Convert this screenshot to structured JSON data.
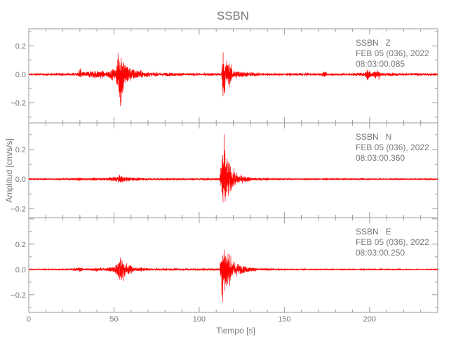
{
  "chart_data": [
    {
      "type": "line",
      "title": "SSBN",
      "xlabel": "Tiempo [s]",
      "ylabel": "Amplitud [cm/s/s]",
      "xlim": [
        0,
        240
      ],
      "xticks": [
        0,
        50,
        100,
        150,
        200
      ],
      "x_minor_step": 10,
      "grid": false,
      "color": "#ff0000",
      "panels": [
        {
          "station": "SSBN",
          "component": "Z",
          "label_line1": "SSBN   Z",
          "label_line2": "FEB 05 (036), 2022",
          "label_line3": "08:03:00.085",
          "ylim": [
            -0.34,
            0.32
          ],
          "yticks": [
            -0.2,
            0.0,
            0.2
          ],
          "ytick_labels": [
            "−0.2",
            "0.0",
            "0.2"
          ],
          "background_amplitude": 0.008,
          "envelope": [
            [
              0,
              0.008
            ],
            [
              20,
              0.01
            ],
            [
              29,
              0.012
            ],
            [
              30,
              0.07
            ],
            [
              31,
              0.02
            ],
            [
              38,
              0.03
            ],
            [
              42,
              0.035
            ],
            [
              45,
              0.02
            ],
            [
              51,
              0.05
            ],
            [
              54,
              0.3
            ],
            [
              56,
              0.12
            ],
            [
              60,
              0.05
            ],
            [
              66,
              0.03
            ],
            [
              72,
              0.015
            ],
            [
              100,
              0.01
            ],
            [
              113,
              0.012
            ],
            [
              114,
              0.2
            ],
            [
              116,
              0.13
            ],
            [
              120,
              0.04
            ],
            [
              126,
              0.02
            ],
            [
              140,
              0.01
            ],
            [
              172,
              0.01
            ],
            [
              173,
              0.025
            ],
            [
              175,
              0.01
            ],
            [
              197,
              0.012
            ],
            [
              199,
              0.06
            ],
            [
              201,
              0.02
            ],
            [
              205,
              0.04
            ],
            [
              207,
              0.012
            ],
            [
              240,
              0.009
            ]
          ]
        },
        {
          "station": "SSBN",
          "component": "N",
          "label_line1": "SSBN   N",
          "label_line2": "FEB 05 (036), 2022",
          "label_line3": "08:03:00.360",
          "ylim": [
            -0.26,
            0.38
          ],
          "yticks": [
            -0.2,
            0.0,
            0.2
          ],
          "ytick_labels": [
            "−0.2",
            "0.0",
            "0.2"
          ],
          "background_amplitude": 0.006,
          "envelope": [
            [
              0,
              0.006
            ],
            [
              25,
              0.007
            ],
            [
              30,
              0.015
            ],
            [
              32,
              0.008
            ],
            [
              40,
              0.012
            ],
            [
              45,
              0.008
            ],
            [
              50,
              0.02
            ],
            [
              54,
              0.03
            ],
            [
              58,
              0.015
            ],
            [
              70,
              0.008
            ],
            [
              112,
              0.008
            ],
            [
              114,
              0.36
            ],
            [
              116,
              0.2
            ],
            [
              119,
              0.08
            ],
            [
              124,
              0.03
            ],
            [
              132,
              0.012
            ],
            [
              150,
              0.007
            ],
            [
              240,
              0.006
            ]
          ]
        },
        {
          "station": "SSBN",
          "component": "E",
          "label_line1": "SSBN   E",
          "label_line2": "FEB 05 (036), 2022",
          "label_line3": "08:03:00.250",
          "ylim": [
            -0.34,
            0.41
          ],
          "yticks": [
            -0.2,
            0.0,
            0.2
          ],
          "ytick_labels": [
            "−0.2",
            "0.0",
            "0.2"
          ],
          "background_amplitude": 0.006,
          "envelope": [
            [
              0,
              0.006
            ],
            [
              25,
              0.008
            ],
            [
              30,
              0.02
            ],
            [
              32,
              0.01
            ],
            [
              40,
              0.015
            ],
            [
              45,
              0.01
            ],
            [
              51,
              0.04
            ],
            [
              54,
              0.14
            ],
            [
              57,
              0.06
            ],
            [
              62,
              0.02
            ],
            [
              72,
              0.01
            ],
            [
              112,
              0.01
            ],
            [
              114,
              0.34
            ],
            [
              116,
              0.2
            ],
            [
              119,
              0.09
            ],
            [
              125,
              0.035
            ],
            [
              134,
              0.012
            ],
            [
              150,
              0.008
            ],
            [
              240,
              0.006
            ]
          ]
        }
      ]
    }
  ]
}
